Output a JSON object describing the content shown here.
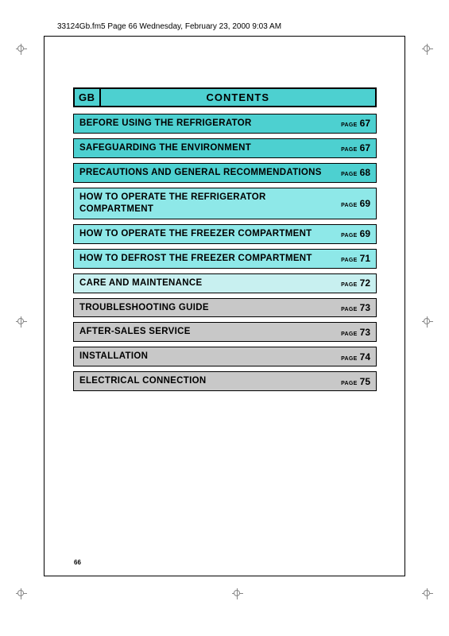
{
  "header": {
    "text": "33124Gb.fm5  Page 66  Wednesday, February 23, 2000  9:03 AM"
  },
  "title": {
    "region_code": "GB",
    "heading": "CONTENTS"
  },
  "colors": {
    "teal_dark": "#4dd0d0",
    "teal_light": "#8ee8e8",
    "teal_pale": "#c8f0f0",
    "grey": "#c8c8c8"
  },
  "page_label": "PAGE",
  "toc": [
    {
      "title": "BEFORE USING THE REFRIGERATOR",
      "page": "67",
      "bg": "#4dd0d0"
    },
    {
      "title": "SAFEGUARDING THE ENVIRONMENT",
      "page": "67",
      "bg": "#4dd0d0"
    },
    {
      "title": "PRECAUTIONS AND GENERAL RECOMMENDATIONS",
      "page": "68",
      "bg": "#4dd0d0"
    },
    {
      "title": "HOW TO OPERATE THE REFRIGERATOR COMPARTMENT",
      "page": "69",
      "bg": "#8ee8e8"
    },
    {
      "title": "HOW TO OPERATE THE FREEZER COMPARTMENT",
      "page": "69",
      "bg": "#8ee8e8"
    },
    {
      "title": "HOW TO DEFROST THE FREEZER COMPARTMENT",
      "page": "71",
      "bg": "#8ee8e8"
    },
    {
      "title": "CARE AND MAINTENANCE",
      "page": "72",
      "bg": "#c8f0f0"
    },
    {
      "title": "TROUBLESHOOTING GUIDE",
      "page": "73",
      "bg": "#c8c8c8"
    },
    {
      "title": "AFTER-SALES SERVICE",
      "page": "73",
      "bg": "#c8c8c8"
    },
    {
      "title": "INSTALLATION",
      "page": "74",
      "bg": "#c8c8c8"
    },
    {
      "title": "ELECTRICAL CONNECTION",
      "page": "75",
      "bg": "#c8c8c8"
    }
  ],
  "footer_page": "66"
}
